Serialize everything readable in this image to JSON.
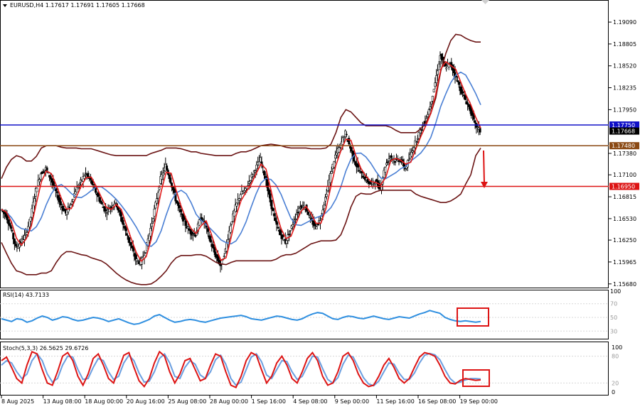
{
  "chart_data": {
    "type": "candlestick",
    "symbol_header": "EURUSD,H4  1.17617 1.17691 1.17605 1.17668",
    "price_axis_ticks": [
      "1.19090",
      "1.18805",
      "1.18520",
      "1.18235",
      "1.17950",
      "1.17380",
      "1.17100",
      "1.16815",
      "1.16530",
      "1.16250",
      "1.15965",
      "1.15680"
    ],
    "x_axis_labels": [
      "8 Aug 2025",
      "13 Aug 08:00",
      "18 Aug 00:00",
      "20 Aug 16:00",
      "25 Aug 08:00",
      "28 Aug 00:00",
      "1 Sep 16:00",
      "4 Sep 08:00",
      "9 Sep 00:00",
      "11 Sep 16:00",
      "16 Sep 08:00",
      "19 Sep 00:00"
    ],
    "ylim": [
      1.1565,
      1.1935
    ],
    "price_path": [
      1.1665,
      1.1658,
      1.164,
      1.1615,
      1.1622,
      1.1632,
      1.1655,
      1.169,
      1.1712,
      1.1718,
      1.1705,
      1.1688,
      1.1671,
      1.166,
      1.1672,
      1.169,
      1.1701,
      1.1712,
      1.1702,
      1.1688,
      1.1674,
      1.1662,
      1.1668,
      1.1675,
      1.1655,
      1.1636,
      1.1618,
      1.16,
      1.1595,
      1.1612,
      1.164,
      1.1672,
      1.1705,
      1.1722,
      1.1702,
      1.1678,
      1.166,
      1.1645,
      1.1635,
      1.1632,
      1.1655,
      1.1645,
      1.1622,
      1.1605,
      1.1592,
      1.1612,
      1.1645,
      1.1668,
      1.1685,
      1.169,
      1.1705,
      1.1718,
      1.173,
      1.1705,
      1.1675,
      1.1648,
      1.1632,
      1.1622,
      1.1638,
      1.1655,
      1.167,
      1.1668,
      1.1652,
      1.1642,
      1.1652,
      1.168,
      1.171,
      1.1735,
      1.1748,
      1.1765,
      1.1745,
      1.1725,
      1.1712,
      1.1705,
      1.1698,
      1.1702,
      1.1692,
      1.1722,
      1.1735,
      1.1728,
      1.173,
      1.1718,
      1.1735,
      1.1752,
      1.1768,
      1.178,
      1.18,
      1.183,
      1.1865,
      1.185,
      1.1855,
      1.184,
      1.1822,
      1.1808,
      1.1795,
      1.1775,
      1.1767
    ],
    "upper_band_path": [
      1.1705,
      1.172,
      1.173,
      1.1735,
      1.1733,
      1.1728,
      1.1728,
      1.1734,
      1.1745,
      1.1748,
      1.1748,
      1.1748,
      1.1746,
      1.1745,
      1.1745,
      1.1745,
      1.1744,
      1.1744,
      1.1744,
      1.1742,
      1.174,
      1.1738,
      1.1736,
      1.1735,
      1.1735,
      1.1735,
      1.1735,
      1.1735,
      1.1735,
      1.1735,
      1.1738,
      1.174,
      1.1742,
      1.1745,
      1.1745,
      1.1745,
      1.1744,
      1.1742,
      1.174,
      1.174,
      1.1738,
      1.1737,
      1.1736,
      1.1735,
      1.1735,
      1.1735,
      1.1735,
      1.1738,
      1.174,
      1.174,
      1.1742,
      1.1745,
      1.1748,
      1.1749,
      1.175,
      1.1749,
      1.1748,
      1.1746,
      1.1745,
      1.1745,
      1.1745,
      1.1745,
      1.1744,
      1.1744,
      1.1744,
      1.1745,
      1.175,
      1.1765,
      1.1785,
      1.1795,
      1.1792,
      1.1785,
      1.1778,
      1.1774,
      1.1774,
      1.1774,
      1.1774,
      1.1774,
      1.1772,
      1.1768,
      1.1765,
      1.1765,
      1.1765,
      1.1765,
      1.177,
      1.1778,
      1.179,
      1.181,
      1.1845,
      1.1868,
      1.1885,
      1.1893,
      1.1892,
      1.1888,
      1.1885,
      1.1883,
      1.1883
    ],
    "lower_band_path": [
      1.1622,
      1.1608,
      1.1595,
      1.1585,
      1.1583,
      1.158,
      1.158,
      1.158,
      1.1582,
      1.1582,
      1.1585,
      1.1596,
      1.1605,
      1.161,
      1.161,
      1.1608,
      1.1606,
      1.1605,
      1.1602,
      1.16,
      1.1598,
      1.1594,
      1.1588,
      1.1582,
      1.1577,
      1.1573,
      1.157,
      1.1568,
      1.1567,
      1.1567,
      1.1568,
      1.1572,
      1.1578,
      1.1585,
      1.1595,
      1.1602,
      1.1605,
      1.1605,
      1.1605,
      1.1606,
      1.1606,
      1.1604,
      1.16,
      1.1596,
      1.1594,
      1.1593,
      1.1596,
      1.1598,
      1.1598,
      1.1598,
      1.1598,
      1.1598,
      1.1598,
      1.1598,
      1.1598,
      1.16,
      1.1604,
      1.1606,
      1.1606,
      1.1608,
      1.1612,
      1.1616,
      1.162,
      1.1622,
      1.1624,
      1.1624,
      1.1624,
      1.1625,
      1.1632,
      1.1648,
      1.1668,
      1.1682,
      1.1686,
      1.1685,
      1.1685,
      1.1688,
      1.169,
      1.169,
      1.169,
      1.169,
      1.169,
      1.169,
      1.169,
      1.1685,
      1.1682,
      1.168,
      1.1678,
      1.1676,
      1.1674,
      1.1674,
      1.1676,
      1.168,
      1.1685,
      1.1698,
      1.171,
      1.1735,
      1.1745
    ]
  },
  "price_lines": [
    {
      "label": "1.17750",
      "value": 1.1775,
      "color": "#1010c8"
    },
    {
      "label": "1.17480",
      "value": 1.1748,
      "color": "#8b4a14"
    },
    {
      "label": "1.16950",
      "value": 1.1695,
      "color": "#dd1414"
    }
  ],
  "current_price_label": "1.17668",
  "rsi": {
    "header": "RSI(14) 43.7133",
    "levels": [
      "70",
      "50",
      "30"
    ],
    "path": [
      48,
      46,
      44,
      48,
      47,
      43,
      45,
      49,
      52,
      50,
      46,
      48,
      51,
      50,
      47,
      45,
      46,
      48,
      50,
      49,
      47,
      44,
      46,
      48,
      45,
      42,
      40,
      41,
      44,
      47,
      52,
      54,
      50,
      46,
      43,
      44,
      46,
      47,
      46,
      44,
      43,
      45,
      47,
      49,
      50,
      51,
      52,
      53,
      51,
      48,
      47,
      46,
      48,
      50,
      52,
      51,
      49,
      47,
      46,
      48,
      52,
      55,
      57,
      56,
      52,
      48,
      47,
      50,
      52,
      51,
      49,
      48,
      50,
      52,
      50,
      48,
      47,
      49,
      51,
      50,
      49,
      52,
      55,
      57,
      60,
      58,
      56,
      50,
      47,
      45,
      44,
      45,
      44,
      43,
      44
    ]
  },
  "stoch": {
    "header": "Stoch(5,3,3) 26.5625 29.6726",
    "levels": [
      "100",
      "80",
      "20",
      "0"
    ],
    "main_path": [
      70,
      78,
      55,
      30,
      20,
      60,
      90,
      85,
      50,
      20,
      15,
      45,
      80,
      88,
      70,
      35,
      15,
      40,
      75,
      85,
      60,
      30,
      20,
      50,
      82,
      88,
      55,
      25,
      12,
      30,
      65,
      90,
      80,
      45,
      20,
      40,
      70,
      75,
      50,
      25,
      30,
      60,
      85,
      80,
      45,
      15,
      10,
      35,
      70,
      88,
      82,
      50,
      20,
      35,
      65,
      80,
      60,
      30,
      20,
      45,
      75,
      88,
      70,
      35,
      15,
      20,
      45,
      80,
      88,
      70,
      40,
      20,
      12,
      15,
      35,
      60,
      75,
      55,
      30,
      20,
      30,
      55,
      78,
      88,
      85,
      80,
      60,
      35,
      20,
      18,
      26,
      30,
      28,
      26,
      27
    ],
    "signal_path": [
      60,
      70,
      65,
      45,
      30,
      40,
      70,
      85,
      70,
      40,
      22,
      30,
      60,
      80,
      78,
      50,
      28,
      30,
      55,
      75,
      70,
      45,
      28,
      35,
      65,
      82,
      70,
      42,
      22,
      24,
      45,
      75,
      85,
      65,
      35,
      30,
      55,
      70,
      62,
      38,
      30,
      45,
      72,
      82,
      62,
      30,
      15,
      22,
      50,
      78,
      85,
      68,
      38,
      30,
      50,
      70,
      68,
      45,
      28,
      35,
      58,
      80,
      78,
      52,
      28,
      20,
      32,
      62,
      82,
      78,
      55,
      32,
      18,
      14,
      24,
      45,
      65,
      62,
      42,
      28,
      28,
      42,
      65,
      82,
      86,
      83,
      72,
      50,
      30,
      20,
      22,
      27,
      30,
      30,
      29
    ]
  },
  "colors": {
    "bollinger": "#6b1414",
    "fast_ma": "#e01a1a",
    "slow_ma": "#4a7fd4",
    "rsi": "#2f8fe0",
    "stoch_main": "#dd1414",
    "stoch_signal": "#6b9fe0",
    "highlight": "#dd1414"
  }
}
